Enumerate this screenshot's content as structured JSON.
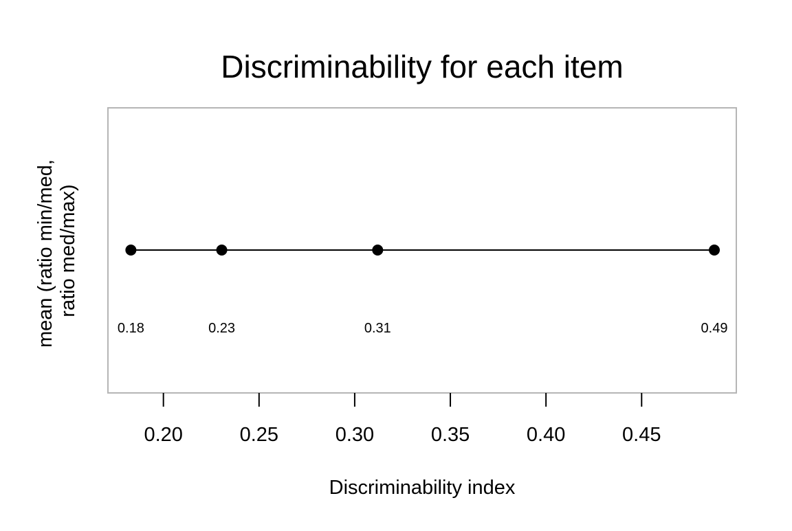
{
  "chart_data": {
    "type": "line",
    "title": "Discriminability for each item",
    "xlabel": "Discriminability index",
    "ylabel_lines": [
      "mean (ratio min/med,",
      "ratio med/max)"
    ],
    "xlim": [
      0.171,
      0.4995
    ],
    "xticks": [
      0.2,
      0.25,
      0.3,
      0.35,
      0.4,
      0.45
    ],
    "xtick_labels": [
      "0.20",
      "0.25",
      "0.30",
      "0.35",
      "0.40",
      "0.45"
    ],
    "grid": false,
    "legend": "none",
    "series": [
      {
        "x": [
          0.183,
          0.2305,
          0.312,
          0.488
        ],
        "data_labels": [
          "0.18",
          "0.23",
          "0.31",
          "0.49"
        ]
      }
    ]
  }
}
